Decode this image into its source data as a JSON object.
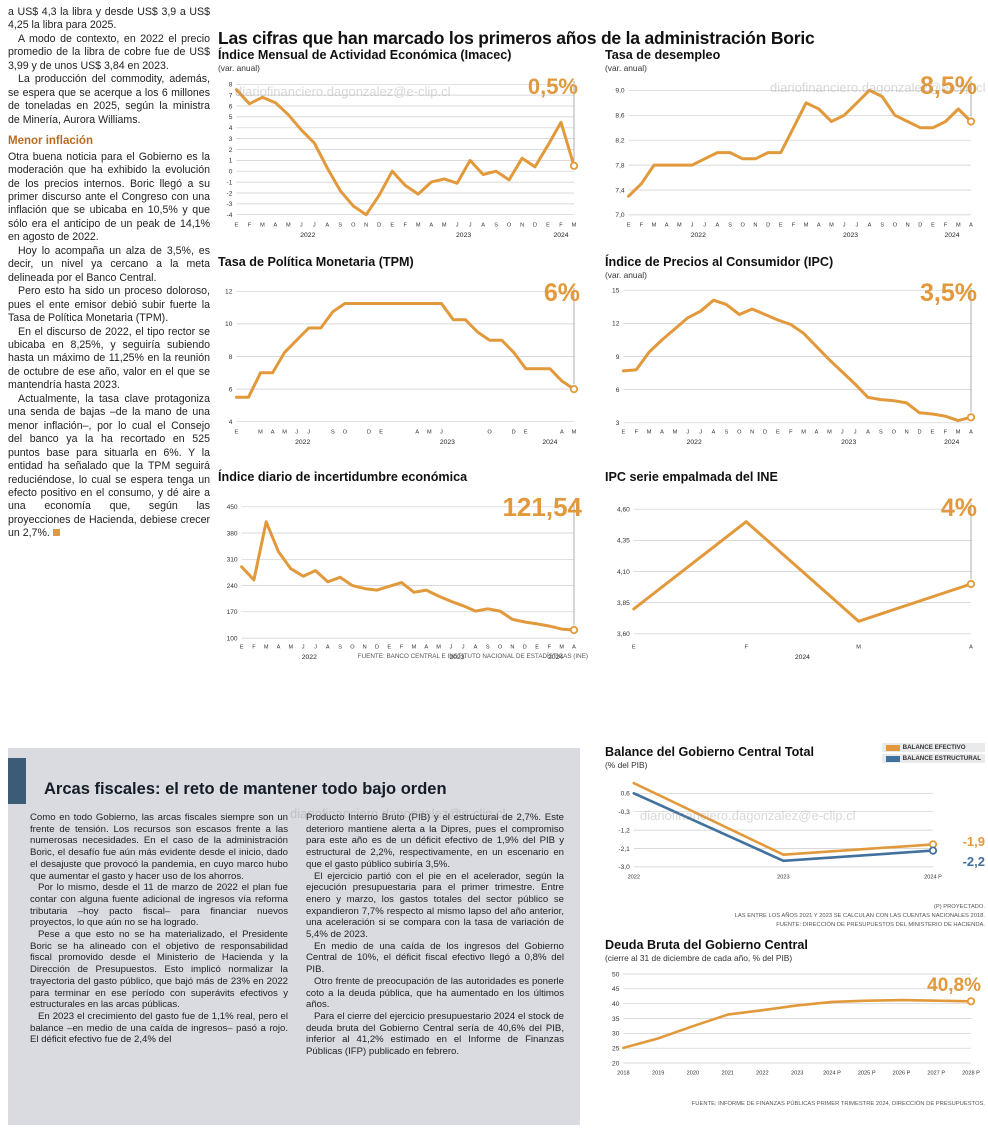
{
  "watermark": "diariofinanciero.dagonzalez@e-clip.cl",
  "colors": {
    "orange": "#e2993b",
    "blue": "#41719f",
    "subhead_orange": "#b96b22",
    "panel_gray": "#d9dbe0",
    "bar_blue": "#3c5b77"
  },
  "article": {
    "paragraphs_top": [
      "a US$ 4,3 la libra y desde US$ 3,9 a US$ 4,25 la libra para 2025.",
      "A modo de contexto, en 2022 el precio promedio de la libra de cobre fue de US$ 3,99 y de unos US$ 3,84 en 2023.",
      "La producción del commodity, además, se espera que se acerque a los 6 millones de toneladas en 2025, según la ministra de Minería, Aurora Williams."
    ],
    "subheading": "Menor inflación",
    "paragraphs_bottom": [
      "Otra buena noticia para el Gobierno es la moderación que ha exhibido la evolución de los precios internos. Boric llegó a su primer discurso ante el Congreso con una inflación que se ubicaba en 10,5% y que sólo era el anticipo de un peak de 14,1% en agosto de 2022.",
      "Hoy lo acompaña un alza de 3,5%, es decir, un nivel ya cercano a la meta delineada por el Banco Central.",
      "Pero esto ha sido un proceso doloroso, pues el ente emisor debió subir fuerte la Tasa de Política Monetaria (TPM).",
      "En el discurso de 2022, el tipo rector se ubicaba en 8,25%, y seguiría subiendo hasta un máximo de 11,25% en la reunión de octubre de ese año, valor en el que se mantendría hasta 2023.",
      "Actualmente, la tasa clave protagoniza una senda de bajas –de la mano de una menor inflación–, por lo cual el Consejo del banco ya la ha recortado en 525 puntos base para situarla en 6%. Y la entidad ha señalado que la TPM seguirá reduciéndose, lo cual se espera tenga un efecto positivo en el consumo, y dé aire a una economía que, según las proyecciones de Hacienda, debiese crecer un 2,7%."
    ]
  },
  "main": {
    "title": "Las cifras que han marcado los primeros años de la administración Boric",
    "source": "FUENTE: BANCO CENTRAL E INSTITUTO NACIONAL DE ESTADÍSTICAS (INE)"
  },
  "fiscal": {
    "title": "Arcas fiscales: el reto de mantener todo bajo orden",
    "col1": [
      "Como en todo Gobierno, las arcas fiscales siempre son un frente de tensión. Los recursos son escasos frente a las numerosas necesidades. En el caso de la administración Boric, el desafío fue aún más evidente desde el inicio, dado el desajuste que provocó la pandemia, en cuyo marco hubo que aumentar el gasto y hacer uso de los ahorros.",
      "Por lo mismo, desde el 11 de marzo de 2022 el plan fue contar con alguna fuente adicional de ingresos vía reforma tributaria –hoy pacto fiscal– para financiar nuevos proyectos, lo que aún no se ha logrado.",
      "Pese a que esto no se ha materializado, el Presidente Boric se ha alineado con el objetivo de responsabilidad fiscal promovido desde el Ministerio de Hacienda y la Dirección de Presupuestos. Esto implicó normalizar la trayectoria del gasto público, que bajó más de 23% en 2022 para terminar en ese período con superávits efectivos y estructurales en las arcas públicas.",
      "En 2023 el crecimiento del gasto fue de 1,1% real, pero el balance –en medio de una caída de ingresos– pasó a rojo. El déficit efectivo fue de 2,4% del"
    ],
    "col2": [
      "Producto Interno Bruto (PIB) y el estructural de 2,7%. Este deterioro mantiene alerta a la Dipres, pues el compromiso para este año es de un déficit efectivo de 1,9% del PIB y estructural de 2,2%, respectivamente, en un escenario en que el gasto público subiría 3,5%.",
      "El ejercicio partió con el pie en el acelerador, según la ejecución presupuestaria para el primer trimestre. Entre enero y marzo, los gastos totales del sector público se expandieron 7,7% respecto al mismo lapso del año anterior, una aceleración si se compara con la tasa de variación de 5,4% de 2023.",
      "En medio de una caída de los ingresos del Gobierno Central de 10%, el déficit fiscal efectivo llegó a 0,8% del PIB.",
      "Otro frente de preocupación de las autoridades es ponerle coto a la deuda pública, que ha aumentado en los últimos años.",
      "Para el cierre del ejercicio presupuestario 2024 el stock de deuda bruta del Gobierno Central sería de 40,6% del PIB, inferior al 41,2% estimado en el Informe de Finanzas Públicas (IFP) publicado en febrero."
    ],
    "balance_footnotes": [
      "(P) PROYECTADO.",
      "LAS ENTRE LOS AÑOS 2021 Y 2023 SE CALCULAN CON LAS CUENTAS NACIONALES 2018.",
      "FUENTE: DIRECCIÓN DE PRESUPUESTOS DEL MINISTERIO DE HACIENDA."
    ],
    "debt_footnote": "FUENTE: INFORME DE FINANZAS PÚBLICAS PRIMER TRIMESTRE 2024, DIRECCIÓN DE PRESUPUESTOS."
  },
  "chart_data": [
    {
      "id": "imacec",
      "type": "line",
      "title": "Índice Mensual de Actividad Económica (Imacec)",
      "subtitle": "(var. anual)",
      "callout": "0,5%",
      "color": "#e2993b",
      "lw": 3,
      "end_guide": true,
      "ylim": [
        -4.3,
        8.3
      ],
      "yticks": [
        {
          "v": 8,
          "l": "8"
        },
        {
          "v": 7,
          "l": "7"
        },
        {
          "v": 6,
          "l": "6"
        },
        {
          "v": 5,
          "l": "5"
        },
        {
          "v": 4,
          "l": "4"
        },
        {
          "v": 3,
          "l": "3"
        },
        {
          "v": 2,
          "l": "2"
        },
        {
          "v": 1,
          "l": "1"
        },
        {
          "v": 0,
          "l": "0"
        },
        {
          "v": -1,
          "l": "-1"
        },
        {
          "v": -2,
          "l": "-2"
        },
        {
          "v": -3,
          "l": "-3"
        },
        {
          "v": -4,
          "l": "-4"
        }
      ],
      "x_labels": [
        "E",
        "F",
        "M",
        "A",
        "M",
        "J",
        "J",
        "A",
        "S",
        "O",
        "N",
        "D",
        "E",
        "F",
        "M",
        "A",
        "M",
        "J",
        "J",
        "A",
        "S",
        "O",
        "N",
        "D",
        "E",
        "F",
        "M"
      ],
      "year_ticks": [
        {
          "label": "2022",
          "start": 0,
          "end": 11
        },
        {
          "label": "2023",
          "start": 12,
          "end": 23
        },
        {
          "label": "2024",
          "start": 24,
          "end": 26
        }
      ],
      "values": [
        7.5,
        6.2,
        6.8,
        6.3,
        5.2,
        3.8,
        2.6,
        0.3,
        -1.8,
        -3.2,
        -4.0,
        -2.2,
        0.0,
        -1.3,
        -2.1,
        -1.0,
        -0.7,
        -1.1,
        1.0,
        -0.3,
        0.0,
        -0.8,
        1.2,
        0.4,
        2.4,
        4.5,
        0.5
      ]
    },
    {
      "id": "desempleo",
      "type": "line",
      "title": "Tasa de desempleo",
      "subtitle": "(var. anual)",
      "callout": "8,5%",
      "color": "#e2993b",
      "lw": 3,
      "end_guide": true,
      "ylim": [
        6.95,
        9.15
      ],
      "yticks": [
        {
          "v": 9.0,
          "l": "9,0"
        },
        {
          "v": 8.6,
          "l": "8,6"
        },
        {
          "v": 8.2,
          "l": "8,2"
        },
        {
          "v": 7.8,
          "l": "7,8"
        },
        {
          "v": 7.4,
          "l": "7,4"
        },
        {
          "v": 7.0,
          "l": "7,0"
        }
      ],
      "x_labels": [
        "E",
        "F",
        "M",
        "A",
        "M",
        "J",
        "J",
        "A",
        "S",
        "O",
        "N",
        "D",
        "E",
        "F",
        "M",
        "A",
        "M",
        "J",
        "J",
        "A",
        "S",
        "O",
        "N",
        "D",
        "E",
        "F",
        "M",
        "A"
      ],
      "year_ticks": [
        {
          "label": "2022",
          "start": 0,
          "end": 11
        },
        {
          "label": "2023",
          "start": 12,
          "end": 23
        },
        {
          "label": "2024",
          "start": 24,
          "end": 27
        }
      ],
      "values": [
        7.3,
        7.5,
        7.8,
        7.8,
        7.8,
        7.8,
        7.9,
        8.0,
        8.0,
        7.9,
        7.9,
        8.0,
        8.0,
        8.4,
        8.8,
        8.7,
        8.5,
        8.6,
        8.8,
        9.0,
        8.9,
        8.6,
        8.5,
        8.4,
        8.4,
        8.5,
        8.7,
        8.5
      ]
    },
    {
      "id": "tpm",
      "type": "line",
      "title": "Tasa de Política Monetaria (TPM)",
      "subtitle": "",
      "callout": "6%",
      "color": "#e2993b",
      "lw": 3,
      "end_guide": true,
      "ylim": [
        3.8,
        12.2
      ],
      "yticks": [
        {
          "v": 12,
          "l": "12"
        },
        {
          "v": 10,
          "l": "10"
        },
        {
          "v": 8,
          "l": "8"
        },
        {
          "v": 6,
          "l": "6"
        },
        {
          "v": 4,
          "l": "4"
        }
      ],
      "x_labels": [
        "E",
        "",
        "M",
        "A",
        "M",
        "J",
        "J",
        "",
        "S",
        "O",
        "",
        "D",
        "E",
        "",
        "",
        "A",
        "M",
        "J",
        "",
        "",
        "",
        "O",
        "",
        "D",
        "E",
        "",
        "",
        "A",
        "M"
      ],
      "year_ticks": [
        {
          "label": "2022",
          "start": 0,
          "end": 11
        },
        {
          "label": "2023",
          "start": 12,
          "end": 23
        },
        {
          "label": "2024",
          "start": 24,
          "end": 28
        }
      ],
      "values": [
        5.5,
        5.5,
        7.0,
        7.0,
        8.25,
        9.0,
        9.75,
        9.75,
        10.75,
        11.25,
        11.25,
        11.25,
        11.25,
        11.25,
        11.25,
        11.25,
        11.25,
        11.25,
        10.25,
        10.25,
        9.5,
        9.0,
        9.0,
        8.25,
        7.25,
        7.25,
        7.25,
        6.5,
        6.0
      ]
    },
    {
      "id": "ipc",
      "type": "line",
      "title": "Índice de Precios al Consumidor (IPC)",
      "subtitle": "(var. anual)",
      "callout": "3,5%",
      "color": "#e2993b",
      "lw": 3,
      "end_guide": true,
      "ylim": [
        2.8,
        15.2
      ],
      "yticks": [
        {
          "v": 15,
          "l": "15"
        },
        {
          "v": 12,
          "l": "12"
        },
        {
          "v": 9,
          "l": "9"
        },
        {
          "v": 6,
          "l": "6"
        },
        {
          "v": 3,
          "l": "3"
        }
      ],
      "x_labels": [
        "E",
        "F",
        "M",
        "A",
        "M",
        "J",
        "J",
        "A",
        "S",
        "O",
        "N",
        "D",
        "E",
        "F",
        "M",
        "A",
        "M",
        "J",
        "J",
        "A",
        "S",
        "O",
        "N",
        "D",
        "E",
        "F",
        "M",
        "A"
      ],
      "year_ticks": [
        {
          "label": "2022",
          "start": 0,
          "end": 11
        },
        {
          "label": "2023",
          "start": 12,
          "end": 23
        },
        {
          "label": "2024",
          "start": 24,
          "end": 27
        }
      ],
      "values": [
        7.7,
        7.8,
        9.4,
        10.5,
        11.5,
        12.5,
        13.1,
        14.1,
        13.7,
        12.8,
        13.3,
        12.8,
        12.3,
        11.9,
        11.1,
        9.9,
        8.7,
        7.6,
        6.5,
        5.3,
        5.1,
        5.0,
        4.8,
        3.9,
        3.8,
        3.6,
        3.2,
        3.5
      ]
    },
    {
      "id": "incertidumbre",
      "type": "line",
      "title": "Índice diario de incertidumbre económica",
      "subtitle": "",
      "callout": "121,54",
      "color": "#e2993b",
      "lw": 3,
      "end_guide": true,
      "ylim": [
        95,
        460
      ],
      "yticks": [
        {
          "v": 450,
          "l": "450"
        },
        {
          "v": 380,
          "l": "380"
        },
        {
          "v": 310,
          "l": "310"
        },
        {
          "v": 240,
          "l": "240"
        },
        {
          "v": 170,
          "l": "170"
        },
        {
          "v": 100,
          "l": "100"
        }
      ],
      "x_labels": [
        "E",
        "F",
        "M",
        "A",
        "M",
        "J",
        "J",
        "A",
        "S",
        "O",
        "N",
        "D",
        "E",
        "F",
        "M",
        "A",
        "M",
        "J",
        "J",
        "A",
        "S",
        "O",
        "N",
        "D",
        "E",
        "F",
        "M",
        "A"
      ],
      "year_ticks": [
        {
          "label": "2022",
          "start": 0,
          "end": 11
        },
        {
          "label": "2023",
          "start": 12,
          "end": 23
        },
        {
          "label": "2024",
          "start": 24,
          "end": 27
        }
      ],
      "values": [
        290,
        255,
        410,
        330,
        285,
        265,
        280,
        250,
        262,
        240,
        232,
        228,
        238,
        248,
        222,
        228,
        212,
        198,
        186,
        172,
        178,
        172,
        150,
        143,
        138,
        132,
        124,
        121.54
      ]
    },
    {
      "id": "ipc_ine",
      "type": "line",
      "title": "IPC serie empalmada del INE",
      "subtitle": "",
      "callout": "4%",
      "color": "#e2993b",
      "lw": 3,
      "end_guide": true,
      "ylim": [
        3.55,
        4.65
      ],
      "yticks": [
        {
          "v": 4.6,
          "l": "4,60"
        },
        {
          "v": 4.35,
          "l": "4,35"
        },
        {
          "v": 4.1,
          "l": "4,10"
        },
        {
          "v": 3.85,
          "l": "3,85"
        },
        {
          "v": 3.6,
          "l": "3,60"
        }
      ],
      "x_labels": [
        "E",
        "F",
        "M",
        "A"
      ],
      "year_ticks": [
        {
          "label": "2024",
          "start": 0,
          "end": 3
        }
      ],
      "values": [
        3.8,
        4.5,
        3.7,
        4.0
      ]
    },
    {
      "id": "balance",
      "type": "line",
      "title": "Balance del Gobierno Central Total",
      "subtitle": "(% del PIB)",
      "lw": 2.6,
      "ylim": [
        -3.15,
        1.35
      ],
      "yticks": [
        {
          "v": 0.6,
          "l": "0,6"
        },
        {
          "v": -0.3,
          "l": "-0,3"
        },
        {
          "v": -1.2,
          "l": "-1,2"
        },
        {
          "v": -2.1,
          "l": "-2,1"
        },
        {
          "v": -3.0,
          "l": "-3,0"
        }
      ],
      "x_labels": [
        "2022",
        "2023",
        "2024 P"
      ],
      "series": [
        {
          "name": "BALANCE EFECTIVO",
          "color": "#e2993b",
          "values": [
            1.1,
            -2.4,
            -1.9
          ],
          "callout": "-1,9"
        },
        {
          "name": "BALANCE ESTRUCTURAL",
          "color": "#41719f",
          "values": [
            0.6,
            -2.7,
            -2.2
          ],
          "callout": "-2,2"
        }
      ]
    },
    {
      "id": "deuda",
      "type": "line",
      "title": "Deuda Bruta del Gobierno Central",
      "subtitle": "(cierre al 31 de diciembre de cada año, % del PIB)",
      "callout": "40,8%",
      "color": "#e2993b",
      "lw": 2.6,
      "ylim": [
        19,
        51
      ],
      "yticks": [
        {
          "v": 50,
          "l": "50"
        },
        {
          "v": 45,
          "l": "45"
        },
        {
          "v": 40,
          "l": "40"
        },
        {
          "v": 35,
          "l": "35"
        },
        {
          "v": 30,
          "l": "30"
        },
        {
          "v": 25,
          "l": "25"
        },
        {
          "v": 20,
          "l": "20"
        }
      ],
      "x_labels": [
        "2018",
        "2019",
        "2020",
        "2021",
        "2022",
        "2023",
        "2024 P",
        "2025 P",
        "2026 P",
        "2027 P",
        "2028 P"
      ],
      "values": [
        25.1,
        28.3,
        32.4,
        36.3,
        37.8,
        39.4,
        40.6,
        41.0,
        41.2,
        41.0,
        40.8
      ]
    }
  ]
}
